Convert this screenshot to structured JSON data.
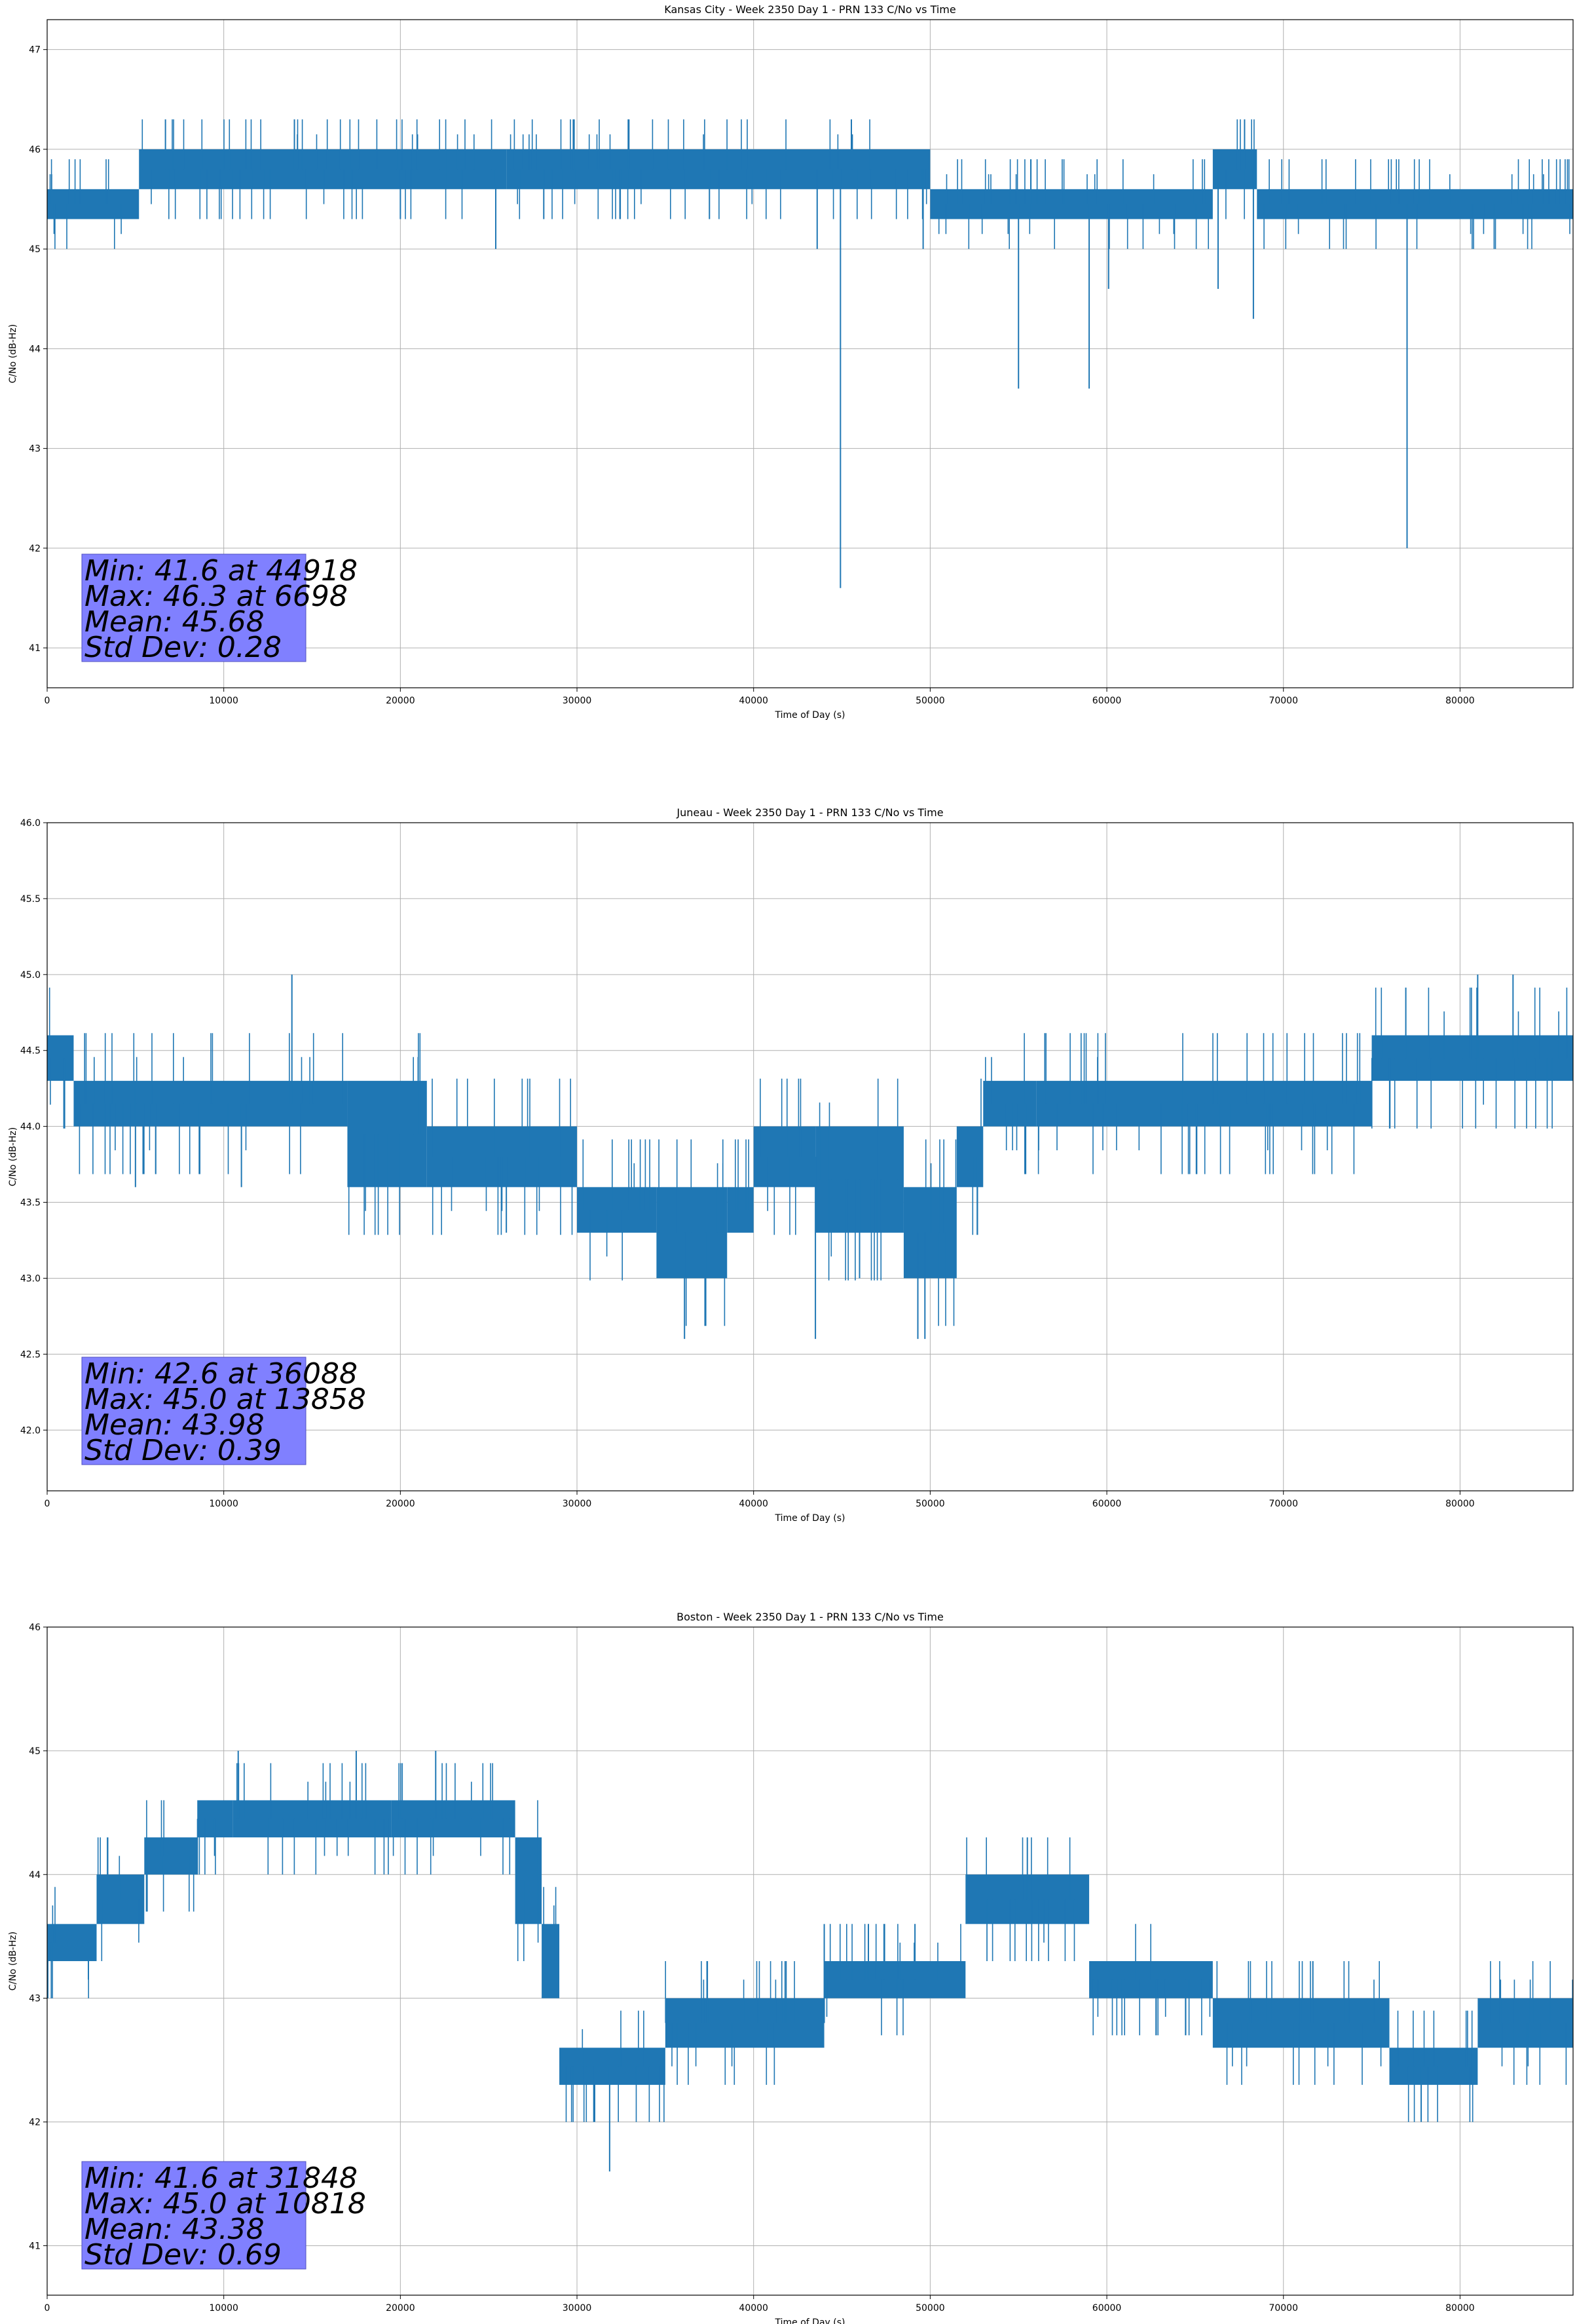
{
  "chart_data": [
    {
      "type": "line",
      "title": "Kansas City - Week 2350 Day 1 - PRN 133 C/No vs Time",
      "xlabel": "Time of Day (s)",
      "ylabel": "C/No (dB-Hz)",
      "xlim": [
        0,
        86400
      ],
      "ylim": [
        40.6,
        47.3
      ],
      "xticks": [
        0,
        10000,
        20000,
        30000,
        40000,
        50000,
        60000,
        70000,
        80000
      ],
      "yticks": [
        41,
        42,
        43,
        44,
        45,
        46,
        47
      ],
      "ytick_labels": [
        "41",
        "42",
        "43",
        "44",
        "45",
        "46",
        "47"
      ],
      "grid": true,
      "series_color": "#1f77b4",
      "band_segments": [
        [
          0,
          5200,
          45.3,
          45.6
        ],
        [
          5200,
          26000,
          45.6,
          46.0
        ],
        [
          26000,
          50000,
          45.6,
          46.0
        ],
        [
          50000,
          66000,
          45.3,
          45.6
        ],
        [
          66000,
          68500,
          45.6,
          46.0
        ],
        [
          68500,
          86400,
          45.3,
          45.6
        ]
      ],
      "spikes": [
        [
          6698,
          46.3
        ],
        [
          14000,
          46.3
        ],
        [
          20000,
          45.3
        ],
        [
          25400,
          45.0
        ],
        [
          37500,
          45.3
        ],
        [
          43600,
          45.0
        ],
        [
          44918,
          41.6
        ],
        [
          49600,
          45.0
        ],
        [
          55000,
          43.6
        ],
        [
          59000,
          43.6
        ],
        [
          60100,
          44.6
        ],
        [
          66300,
          44.6
        ],
        [
          67800,
          46.3
        ],
        [
          68300,
          44.3
        ],
        [
          77000,
          42.0
        ]
      ],
      "stats": {
        "min": "Min: 41.6 at 44918",
        "max": "Max: 46.3 at 6698",
        "mean": "Mean: 45.68",
        "std": "Std Dev: 0.28"
      },
      "stats_box_color": "#8080ff",
      "stats_box_placement": "bottom-left"
    },
    {
      "type": "line",
      "title": "Juneau - Week 2350 Day 1 - PRN 133 C/No vs Time",
      "xlabel": "Time of Day (s)",
      "ylabel": "C/No (dB-Hz)",
      "xlim": [
        0,
        86400
      ],
      "ylim": [
        41.6,
        46.0
      ],
      "xticks": [
        0,
        10000,
        20000,
        30000,
        40000,
        50000,
        60000,
        70000,
        80000
      ],
      "yticks": [
        42.0,
        42.5,
        43.0,
        43.5,
        44.0,
        44.5,
        45.0,
        45.5,
        46.0
      ],
      "ytick_labels": [
        "42.0",
        "42.5",
        "43.0",
        "43.5",
        "44.0",
        "44.5",
        "45.0",
        "45.5",
        "46.0"
      ],
      "grid": true,
      "series_color": "#1f77b4",
      "band_segments": [
        [
          0,
          1500,
          44.3,
          44.6
        ],
        [
          1500,
          17000,
          44.0,
          44.3
        ],
        [
          17000,
          21500,
          43.6,
          44.3
        ],
        [
          21500,
          30000,
          43.6,
          44.0
        ],
        [
          30000,
          34500,
          43.3,
          43.6
        ],
        [
          34500,
          38500,
          43.0,
          43.6
        ],
        [
          38500,
          40000,
          43.3,
          43.6
        ],
        [
          40000,
          43500,
          43.6,
          44.0
        ],
        [
          43500,
          48500,
          43.3,
          44.0
        ],
        [
          48500,
          51500,
          43.0,
          43.6
        ],
        [
          51500,
          53000,
          43.6,
          44.0
        ],
        [
          53000,
          56000,
          44.0,
          44.3
        ],
        [
          56000,
          75000,
          44.0,
          44.3
        ],
        [
          75000,
          86400,
          44.3,
          44.6
        ]
      ],
      "spikes": [
        [
          13858,
          45.0
        ],
        [
          36088,
          42.6
        ],
        [
          43500,
          42.6
        ],
        [
          49300,
          42.6
        ],
        [
          49700,
          42.6
        ],
        [
          81000,
          45.0
        ],
        [
          83000,
          45.0
        ],
        [
          5000,
          43.6
        ],
        [
          11000,
          43.6
        ],
        [
          26000,
          43.3
        ],
        [
          46000,
          43.0
        ]
      ],
      "stats": {
        "min": "Min: 42.6 at 36088",
        "max": "Max: 45.0 at 13858",
        "mean": "Mean: 43.98",
        "std": "Std Dev: 0.39"
      },
      "stats_box_color": "#8080ff",
      "stats_box_placement": "bottom-left"
    },
    {
      "type": "line",
      "title": "Boston - Week 2350 Day 1 - PRN 133 C/No vs Time",
      "xlabel": "Time of Day (s)",
      "ylabel": "C/No (dB-Hz)",
      "xlim": [
        0,
        86400
      ],
      "ylim": [
        40.6,
        46.0
      ],
      "xticks": [
        0,
        10000,
        20000,
        30000,
        40000,
        50000,
        60000,
        70000,
        80000
      ],
      "yticks": [
        41,
        42,
        43,
        44,
        45,
        46
      ],
      "ytick_labels": [
        "41",
        "42",
        "43",
        "44",
        "45",
        "46"
      ],
      "grid": true,
      "series_color": "#1f77b4",
      "band_segments": [
        [
          0,
          2800,
          43.3,
          43.6
        ],
        [
          2800,
          5500,
          43.6,
          44.0
        ],
        [
          5500,
          8500,
          44.0,
          44.3
        ],
        [
          8500,
          10500,
          44.3,
          44.6
        ],
        [
          10500,
          19500,
          44.3,
          44.6
        ],
        [
          19500,
          26500,
          44.3,
          44.6
        ],
        [
          26500,
          28000,
          43.6,
          44.3
        ],
        [
          28000,
          29000,
          43.0,
          43.6
        ],
        [
          29000,
          35000,
          42.3,
          42.6
        ],
        [
          35000,
          44000,
          42.6,
          43.0
        ],
        [
          44000,
          52000,
          43.0,
          43.3
        ],
        [
          52000,
          59000,
          43.6,
          44.0
        ],
        [
          59000,
          66000,
          43.0,
          43.3
        ],
        [
          66000,
          76000,
          42.6,
          43.0
        ],
        [
          76000,
          81000,
          42.3,
          42.6
        ],
        [
          81000,
          86400,
          42.6,
          43.0
        ]
      ],
      "spikes": [
        [
          10818,
          45.0
        ],
        [
          17500,
          45.0
        ],
        [
          22000,
          45.0
        ],
        [
          31848,
          41.6
        ],
        [
          31000,
          42.0
        ],
        [
          55500,
          44.3
        ],
        [
          77800,
          42.0
        ],
        [
          44000,
          43.6
        ],
        [
          46500,
          43.6
        ]
      ],
      "stats": {
        "min": "Min: 41.6 at 31848",
        "max": "Max: 45.0 at 10818",
        "mean": "Mean: 43.38",
        "std": "Std Dev: 0.69"
      },
      "stats_box_color": "#8080ff",
      "stats_box_placement": "bottom-left"
    }
  ]
}
